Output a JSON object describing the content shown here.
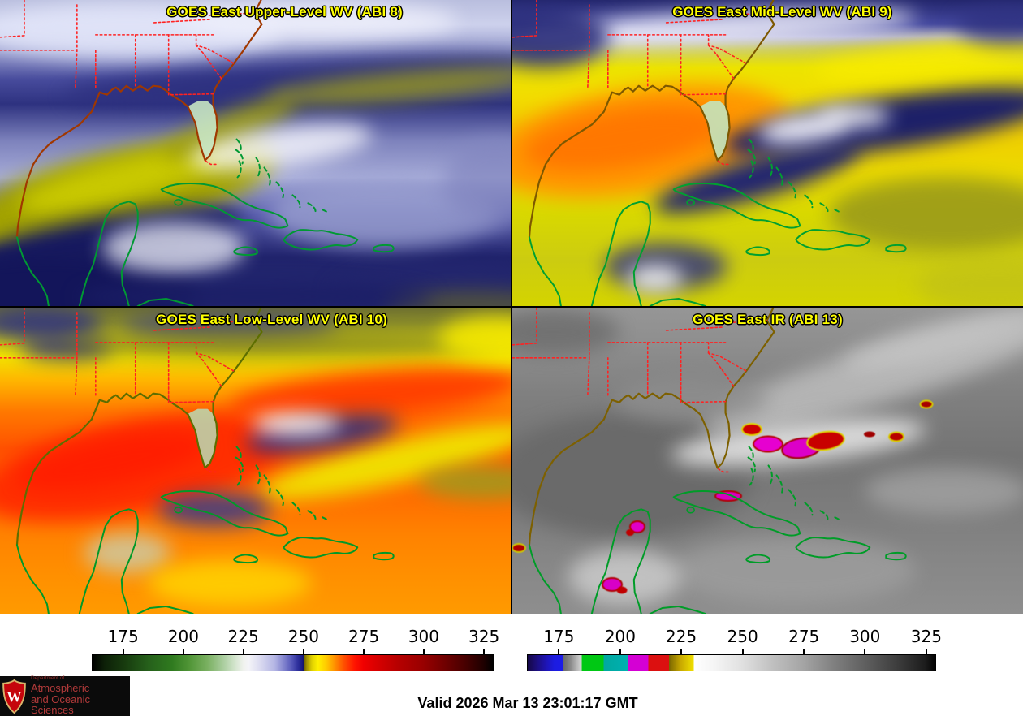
{
  "panels": [
    {
      "title": "GOES East Upper-Level WV (ABI 8)"
    },
    {
      "title": "GOES East Mid-Level WV (ABI 9)"
    },
    {
      "title": "GOES East Low-Level WV (ABI 10)"
    },
    {
      "title": "GOES East IR (ABI 13)"
    }
  ],
  "colorbars": [
    {
      "name": "water-vapor-brightness-temperature-scale",
      "unit": "K",
      "range_kelvin": [
        162,
        329
      ],
      "ticks": [
        "175",
        "200",
        "225",
        "250",
        "275",
        "300",
        "325"
      ]
    },
    {
      "name": "ir-brightness-temperature-scale",
      "unit": "K",
      "range_kelvin": [
        162,
        329
      ],
      "ticks": [
        "175",
        "200",
        "225",
        "250",
        "275",
        "300",
        "325"
      ]
    }
  ],
  "footer": {
    "valid_text": "Valid 2026 Mar 13 23:01:17 GMT"
  },
  "logo": {
    "dept": "Department of",
    "line2": "Atmospheric",
    "line3": "and Oceanic Sciences",
    "crest_letter": "W"
  },
  "colors": {
    "title_yellow": "#ffff00",
    "state_border_red": "#ff2222",
    "island_coast_green": "#009933",
    "us_coast_brown": "#a03800",
    "logo_red": "#b23a3a"
  }
}
